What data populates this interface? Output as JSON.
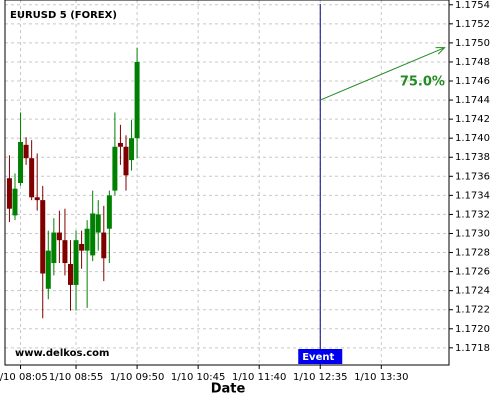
{
  "chart_data": {
    "type": "candlestick",
    "title": "EURUSD 5 (FOREX)",
    "xlabel": "Date",
    "watermark": "www.delkos.com",
    "grid": true,
    "up_color": "#008000",
    "down_color": "#800000",
    "xlim": [
      "1/10 07:51",
      "1/10 14:31"
    ],
    "xticks": [
      "1/10 08:05",
      "1/10 08:55",
      "1/10 09:50",
      "1/10 10:45",
      "1/10 11:40",
      "1/10 12:35",
      "1/10 13:30"
    ],
    "ylim": [
      1.17162,
      1.17545
    ],
    "yticks": [
      1.1718,
      {
        "value": 1.172,
        "label": "1.1720"
      },
      1.1722,
      1.1724,
      1.1726,
      1.1728,
      {
        "value": 1.173,
        "label": "1.1730"
      },
      1.1732,
      1.1734,
      1.1736,
      1.1738,
      {
        "value": 1.174,
        "label": "1.1740"
      },
      1.1742,
      1.1744,
      1.1746,
      1.1748,
      {
        "value": 1.175,
        "label": "1.1750"
      },
      1.1752,
      1.1754
    ],
    "x": [
      "1/10 07:55",
      "1/10 08:00",
      "1/10 08:05",
      "1/10 08:10",
      "1/10 08:15",
      "1/10 08:20",
      "1/10 08:25",
      "1/10 08:30",
      "1/10 08:35",
      "1/10 08:40",
      "1/10 08:45",
      "1/10 08:50",
      "1/10 08:55",
      "1/10 09:00",
      "1/10 09:05",
      "1/10 09:10",
      "1/10 09:15",
      "1/10 09:20",
      "1/10 09:25",
      "1/10 09:30",
      "1/10 09:35",
      "1/10 09:40",
      "1/10 09:45",
      "1/10 09:50"
    ],
    "open": [
      1.17358,
      1.17319,
      1.17353,
      1.17393,
      1.17379,
      1.17338,
      1.17335,
      1.17242,
      1.17269,
      1.17301,
      1.17293,
      1.17268,
      1.17246,
      1.17289,
      1.17282,
      1.17277,
      1.17301,
      1.17301,
      1.17305,
      1.17345,
      1.17395,
      1.17391,
      1.17377,
      1.174
    ],
    "high": [
      1.17382,
      1.17363,
      1.17427,
      1.17401,
      1.17398,
      1.17384,
      1.1735,
      1.17303,
      1.17316,
      1.17324,
      1.17326,
      1.17293,
      1.17303,
      1.17303,
      1.17314,
      1.17345,
      1.17335,
      1.17329,
      1.17345,
      1.17427,
      1.17414,
      1.17403,
      1.17419,
      1.17495
    ],
    "low": [
      1.17312,
      1.17314,
      1.1735,
      1.17372,
      1.17335,
      1.17324,
      1.17211,
      1.17231,
      1.17256,
      1.17269,
      1.17256,
      1.17219,
      1.17219,
      1.17263,
      1.17222,
      1.17271,
      1.17282,
      1.1725,
      1.17269,
      1.1734,
      1.17372,
      1.17345,
      1.17366,
      1.17379
    ],
    "close": [
      1.17326,
      1.17347,
      1.17396,
      1.17379,
      1.17338,
      1.17335,
      1.17258,
      1.17282,
      1.17301,
      1.17293,
      1.17269,
      1.17246,
      1.17293,
      1.17282,
      1.17305,
      1.17321,
      1.1732,
      1.17274,
      1.1734,
      1.17391,
      1.17391,
      1.17361,
      1.174,
      1.1748
    ],
    "event": {
      "label": "Event",
      "x": "1/10 12:35",
      "color": "#000080"
    },
    "projection": {
      "label": "75.0%",
      "x0": "1/10 12:35",
      "y0": 1.1744,
      "x1": "1/10 14:27",
      "y1": 1.17495,
      "color": "#228b22"
    }
  }
}
